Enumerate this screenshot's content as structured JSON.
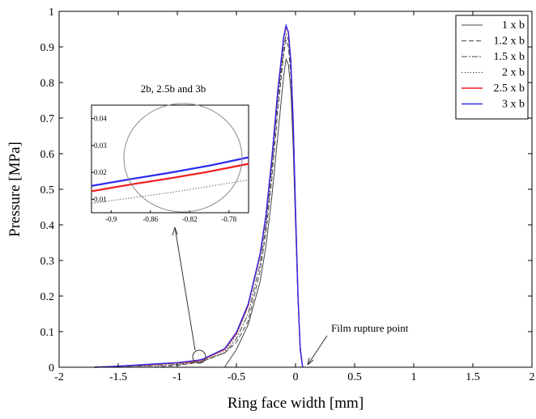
{
  "chart_data": {
    "type": "line",
    "xlabel": "Ring face width [mm]",
    "ylabel": "Pressure [MPa]",
    "xlim": [
      -2,
      2
    ],
    "ylim": [
      0,
      1
    ],
    "x_ticks": [
      -2,
      -1.5,
      -1,
      -0.5,
      0,
      0.5,
      1,
      1.5,
      2
    ],
    "y_ticks": [
      0,
      0.1,
      0.2,
      0.3,
      0.4,
      0.5,
      0.6,
      0.7,
      0.8,
      0.9,
      1
    ],
    "x_tick_labels": [
      "-2",
      "-1.5",
      "-1",
      "-0.5",
      "0",
      "0.5",
      "1",
      "1.5",
      "2"
    ],
    "y_tick_labels": [
      "0",
      "0.1",
      "0.2",
      "0.3",
      "0.4",
      "0.5",
      "0.6",
      "0.7",
      "0.8",
      "0.9",
      "1"
    ],
    "legend_position": "top-right",
    "grid": false,
    "series": [
      {
        "name": "1 x b",
        "color": "#444444",
        "dash": "solid",
        "x": [
          -0.6,
          -0.5,
          -0.4,
          -0.3,
          -0.25,
          -0.2,
          -0.15,
          -0.1,
          -0.08,
          -0.06,
          -0.04,
          -0.02,
          0,
          0.02,
          0.04,
          0.06
        ],
        "y": [
          0,
          0.05,
          0.12,
          0.24,
          0.34,
          0.48,
          0.65,
          0.82,
          0.865,
          0.85,
          0.78,
          0.62,
          0.4,
          0.2,
          0.06,
          0
        ]
      },
      {
        "name": "1.2 x b",
        "color": "#444444",
        "dash": "dashed",
        "x": [
          -1.2,
          -1.0,
          -0.8,
          -0.6,
          -0.5,
          -0.4,
          -0.3,
          -0.25,
          -0.2,
          -0.15,
          -0.1,
          -0.08,
          -0.06,
          -0.04,
          -0.02,
          0,
          0.02,
          0.04,
          0.06
        ],
        "y": [
          0,
          0.005,
          0.015,
          0.04,
          0.07,
          0.13,
          0.27,
          0.38,
          0.53,
          0.72,
          0.88,
          0.92,
          0.9,
          0.82,
          0.66,
          0.42,
          0.2,
          0.05,
          0
        ]
      },
      {
        "name": "1.5 x b",
        "color": "#444444",
        "dash": "dashdot",
        "x": [
          -1.7,
          -1.5,
          -1.2,
          -1.0,
          -0.8,
          -0.6,
          -0.5,
          -0.4,
          -0.3,
          -0.25,
          -0.2,
          -0.15,
          -0.1,
          -0.08,
          -0.06,
          -0.04,
          -0.02,
          0,
          0.02,
          0.04,
          0.06
        ],
        "y": [
          0,
          0.002,
          0.004,
          0.008,
          0.016,
          0.04,
          0.08,
          0.15,
          0.29,
          0.4,
          0.56,
          0.75,
          0.9,
          0.935,
          0.92,
          0.84,
          0.68,
          0.43,
          0.21,
          0.05,
          0
        ]
      },
      {
        "name": "2 x b",
        "color": "#555555",
        "dash": "dotted",
        "x": [
          -1.7,
          -1.5,
          -1.2,
          -1.0,
          -0.9,
          -0.82,
          -0.78,
          -0.6,
          -0.5,
          -0.4,
          -0.3,
          -0.25,
          -0.2,
          -0.15,
          -0.1,
          -0.08,
          -0.06,
          -0.04,
          -0.02,
          0,
          0.02,
          0.04,
          0.06
        ],
        "y": [
          0,
          0.002,
          0.005,
          0.008,
          0.0095,
          0.014,
          0.017,
          0.045,
          0.09,
          0.17,
          0.31,
          0.42,
          0.58,
          0.77,
          0.92,
          0.955,
          0.94,
          0.86,
          0.69,
          0.44,
          0.21,
          0.05,
          0
        ]
      },
      {
        "name": "2.5 x b",
        "color": "#ee1c1c",
        "dash": "solid",
        "x": [
          -1.7,
          -1.5,
          -1.2,
          -1.0,
          -0.9,
          -0.82,
          -0.78,
          -0.6,
          -0.5,
          -0.4,
          -0.3,
          -0.25,
          -0.2,
          -0.15,
          -0.1,
          -0.08,
          -0.06,
          -0.04,
          -0.02,
          0,
          0.02,
          0.04,
          0.06
        ],
        "y": [
          0,
          0.003,
          0.008,
          0.012,
          0.0145,
          0.0185,
          0.0215,
          0.05,
          0.095,
          0.175,
          0.315,
          0.425,
          0.585,
          0.775,
          0.925,
          0.958,
          0.94,
          0.86,
          0.69,
          0.44,
          0.21,
          0.05,
          0
        ]
      },
      {
        "name": "3 x b",
        "color": "#2a2aee",
        "dash": "solid",
        "x": [
          -1.7,
          -1.5,
          -1.2,
          -1.0,
          -0.9,
          -0.82,
          -0.78,
          -0.6,
          -0.5,
          -0.4,
          -0.3,
          -0.25,
          -0.2,
          -0.15,
          -0.1,
          -0.08,
          -0.06,
          -0.04,
          -0.02,
          0,
          0.02,
          0.04,
          0.06
        ],
        "y": [
          0,
          0.003,
          0.009,
          0.013,
          0.0165,
          0.02,
          0.0235,
          0.052,
          0.098,
          0.178,
          0.318,
          0.428,
          0.588,
          0.778,
          0.928,
          0.96,
          0.942,
          0.86,
          0.69,
          0.44,
          0.21,
          0.05,
          0
        ]
      }
    ],
    "inset": {
      "title": "2b, 2.5b and 3b",
      "xlim": [
        -0.92,
        -0.76
      ],
      "ylim": [
        0.005,
        0.045
      ],
      "x_ticks": [
        -0.9,
        -0.86,
        -0.82,
        -0.78
      ],
      "y_ticks": [
        0.01,
        0.02,
        0.03,
        0.04
      ],
      "x_tick_labels": [
        "-0.9",
        "-0.86",
        "-0.82",
        "-0.78"
      ],
      "y_tick_labels": [
        "0.01",
        "0.02",
        "0.03",
        "0.04"
      ],
      "series": [
        {
          "name": "2 x b",
          "color": "#666666",
          "dash": "dotted",
          "x": [
            -0.92,
            -0.88,
            -0.84,
            -0.8,
            -0.76
          ],
          "y": [
            0.0085,
            0.0105,
            0.0125,
            0.0148,
            0.0172
          ]
        },
        {
          "name": "2.5 x b",
          "color": "#ee1c1c",
          "dash": "solid",
          "x": [
            -0.92,
            -0.88,
            -0.84,
            -0.8,
            -0.76
          ],
          "y": [
            0.013,
            0.0155,
            0.0178,
            0.0203,
            0.0232
          ]
        },
        {
          "name": "3 x b",
          "color": "#2a2aee",
          "dash": "solid",
          "x": [
            -0.92,
            -0.88,
            -0.84,
            -0.8,
            -0.76
          ],
          "y": [
            0.015,
            0.0175,
            0.0199,
            0.0225,
            0.0256
          ]
        }
      ]
    },
    "annotations": [
      {
        "text": "Film rupture point",
        "x": 0.05,
        "y": 0
      }
    ]
  }
}
